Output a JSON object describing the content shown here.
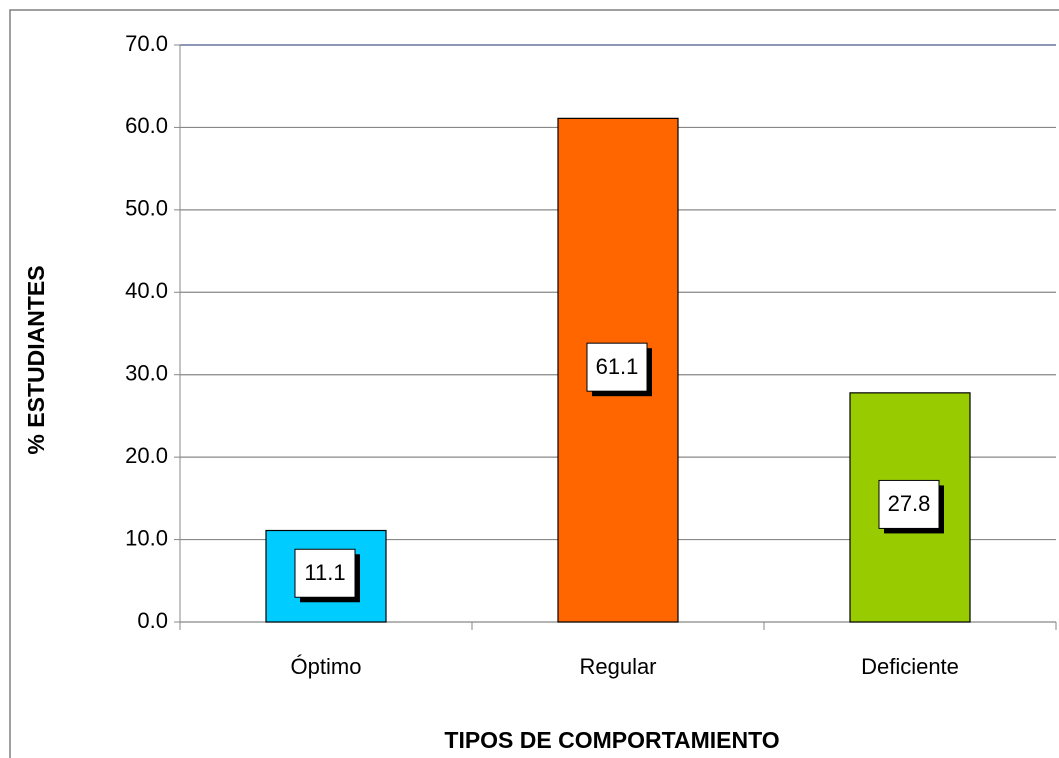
{
  "chart_data": {
    "type": "bar",
    "x_label": "TIPOS DE COMPORTAMIENTO",
    "y_label": "% ESTUDIANTES",
    "categories": [
      "Óptimo",
      "Regular",
      "Deficiente"
    ],
    "values": [
      11.1,
      61.1,
      27.8
    ],
    "colors": [
      "#00ccff",
      "#ff6600",
      "#99cc00"
    ],
    "ylim": [
      0,
      70
    ],
    "yticks": [
      {
        "value": 0,
        "label": "0.0"
      },
      {
        "value": 10,
        "label": "10.0"
      },
      {
        "value": 20,
        "label": "20.0"
      },
      {
        "value": 30,
        "label": "30.0"
      },
      {
        "value": 40,
        "label": "40.0"
      },
      {
        "value": 50,
        "label": "50.0"
      },
      {
        "value": 60,
        "label": "60.0"
      },
      {
        "value": 70,
        "label": "70.0"
      }
    ],
    "grid": true
  }
}
